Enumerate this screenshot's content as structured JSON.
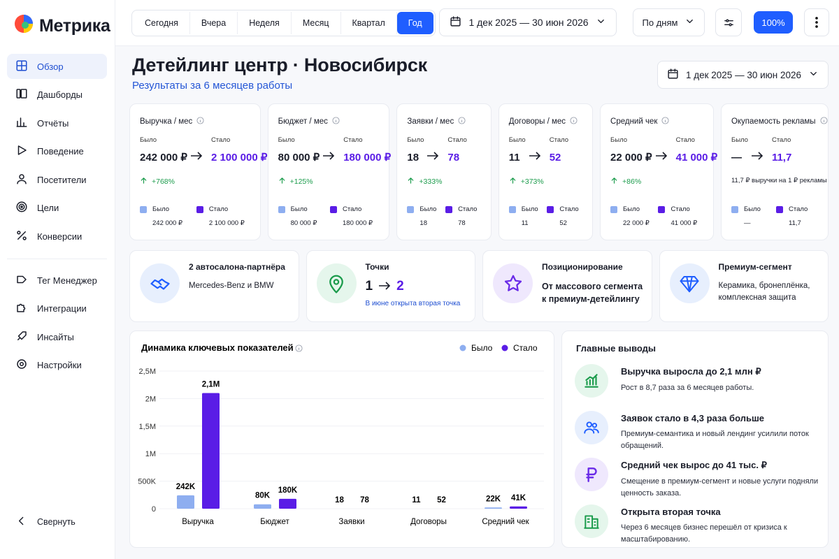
{
  "sidebar": {
    "logo": "Метрика",
    "nav": [
      "Обзор",
      "Дашборды",
      "Отчёты",
      "Поведение",
      "Посетители",
      "Цели",
      "Конверсии"
    ],
    "active": 0,
    "tools": [
      "Тег Менеджер",
      "Интеграции",
      "Инсайты",
      "Настройки"
    ],
    "collapse": "Свернуть"
  },
  "toolbar": {
    "periods": [
      "Сегодня",
      "Вчера",
      "Неделя",
      "Месяц",
      "Квартал",
      "Год"
    ],
    "active_period": 5,
    "date_range": "1 дек 2025 — 30 июн 2026",
    "grouping": "По дням",
    "zoom": "100%"
  },
  "header": {
    "title": "Детейлинг центр · Новосибирск",
    "subtitle": "Результаты за 6 месяцев работы",
    "date_range": "1 дек 2025 — 30 июн 2026"
  },
  "kpis": [
    {
      "title": "Выручка / мес",
      "before_label": "Было",
      "after_label": "Стало",
      "before": "242 000 ₽",
      "after": "2 100 000 ₽",
      "change": "+768%",
      "legend": [
        "Было",
        "Стало"
      ],
      "legend_values": [
        "242 000 ₽",
        "2 100 000 ₽"
      ]
    },
    {
      "title": "Бюджет / мес",
      "before_label": "Было",
      "after_label": "Стало",
      "before": "80 000 ₽",
      "after": "180 000 ₽",
      "change": "+125%",
      "legend": [
        "Было",
        "Стало"
      ],
      "legend_values": [
        "80 000 ₽",
        "180 000 ₽"
      ]
    },
    {
      "title": "Заявки / мес",
      "before_label": "Было",
      "after_label": "Стало",
      "before": "18",
      "after": "78",
      "change": "+333%",
      "legend": [
        "Было",
        "Стало"
      ],
      "legend_values": [
        "18",
        "78"
      ]
    },
    {
      "title": "Договоры / мес",
      "before_label": "Было",
      "after_label": "Стало",
      "before": "11",
      "after": "52",
      "change": "+373%",
      "legend": [
        "Было",
        "Стало"
      ],
      "legend_values": [
        "11",
        "52"
      ]
    },
    {
      "title": "Средний чек",
      "before_label": "Было",
      "after_label": "Стало",
      "before": "22 000 ₽",
      "after": "41 000 ₽",
      "change": "+86%",
      "legend": [
        "Было",
        "Стало"
      ],
      "legend_values": [
        "22 000 ₽",
        "41 000 ₽"
      ]
    },
    {
      "title": "Окупаемость рекламы",
      "before_label": "Было",
      "after_label": "Стало",
      "before": "—",
      "after": "11,7",
      "note": "11,7 ₽ выручки на 1 ₽ рекламы",
      "legend": [
        "Было",
        "Стало"
      ],
      "legend_values": [
        "—",
        "11,7"
      ]
    }
  ],
  "highlights": [
    {
      "title": "2 автосалона-партнёра",
      "text": "Mercedes-Benz и BMW"
    },
    {
      "title": "Точки",
      "before": "1",
      "after": "2",
      "text": "В июне открыта вторая точка"
    },
    {
      "title": "Позиционирование",
      "text": "От массового сегмента к премиум-детейлингу"
    },
    {
      "title": "Премиум-сегмент",
      "text": "Керамика, бронеплёнка, комплексная защита"
    }
  ],
  "chart_data": {
    "type": "bar",
    "title": "Динамика ключевых показателей",
    "categories": [
      "Выручка",
      "Бюджет",
      "Заявки",
      "Договоры",
      "Средний чек"
    ],
    "series": [
      {
        "name": "Было",
        "color": "#8eaef0",
        "values": [
          242000,
          80000,
          18,
          11,
          22000
        ],
        "value_labels": [
          "242K",
          "80K",
          "18",
          "11",
          "22K"
        ]
      },
      {
        "name": "Стало",
        "color": "#5a1de6",
        "values": [
          2100000,
          180000,
          78,
          52,
          41000
        ],
        "value_labels": [
          "2,1M",
          "180K",
          "78",
          "52",
          "41K"
        ]
      }
    ],
    "ylim": [
      0,
      2500000
    ],
    "yticks": [
      0,
      {
        "value": 500000,
        "label": "500K"
      },
      {
        "value": 1000000,
        "label": "1M"
      },
      {
        "value": 1500000,
        "label": "1,5M"
      },
      {
        "value": 2000000,
        "label": "2M"
      },
      {
        "value": 2500000,
        "label": "2,5M"
      }
    ],
    "grid": true,
    "legend": "top-right"
  },
  "conclusions": {
    "title": "Главные выводы",
    "items": [
      {
        "title": "Выручка выросла до 2,1 млн ₽",
        "text": "Рост в 8,7 раза за 6 месяцев работы."
      },
      {
        "title": "Заявок стало в 4,3 раза больше",
        "text": "Премиум-семантика и новый лендинг усилили поток обращений."
      },
      {
        "title": "Средний чек вырос до 41 тыс. ₽",
        "text": "Смещение в премиум-сегмент и новые услуги подняли ценность заказа."
      },
      {
        "title": "Открыта вторая точка",
        "text": "Через 6 месяцев бизнес перешёл от кризиса к масштабированию."
      }
    ]
  }
}
